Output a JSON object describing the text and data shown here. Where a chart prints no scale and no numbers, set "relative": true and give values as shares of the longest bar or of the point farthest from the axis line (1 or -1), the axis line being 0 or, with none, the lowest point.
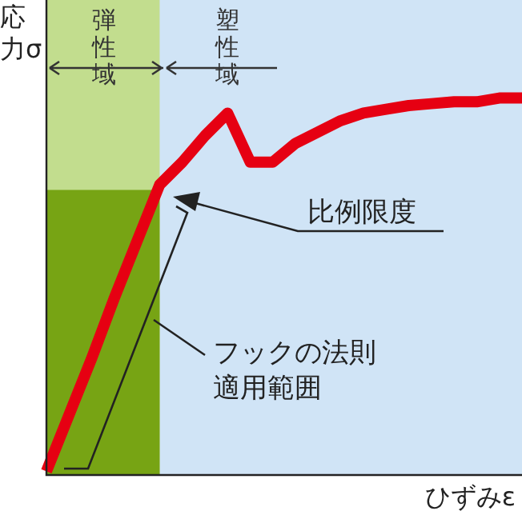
{
  "chart_data": {
    "type": "line",
    "relative": true,
    "xlabel": "ひずみε",
    "ylabel": "応力σ",
    "categories": [
      null,
      null,
      null,
      null,
      null,
      null,
      null,
      null,
      null,
      null,
      null,
      null,
      null,
      null,
      null,
      null,
      null,
      null,
      null,
      null,
      null,
      null
    ],
    "series": [
      {
        "color": "#e60012",
        "values": [
          0.01,
          0.16,
          0.31,
          0.47,
          0.62,
          0.77,
          0.83,
          0.9,
          0.96,
          0.83,
          0.83,
          0.88,
          0.91,
          0.94,
          0.96,
          0.97,
          0.98,
          0.985,
          0.99,
          0.99,
          1.0,
          1.0
        ]
      }
    ],
    "annotations": [
      "弾性域",
      "塑性域",
      "比例限度",
      "フックの法則適用範囲"
    ],
    "marker": "none",
    "line_style": "solid",
    "grid": false,
    "legend": false
  }
}
